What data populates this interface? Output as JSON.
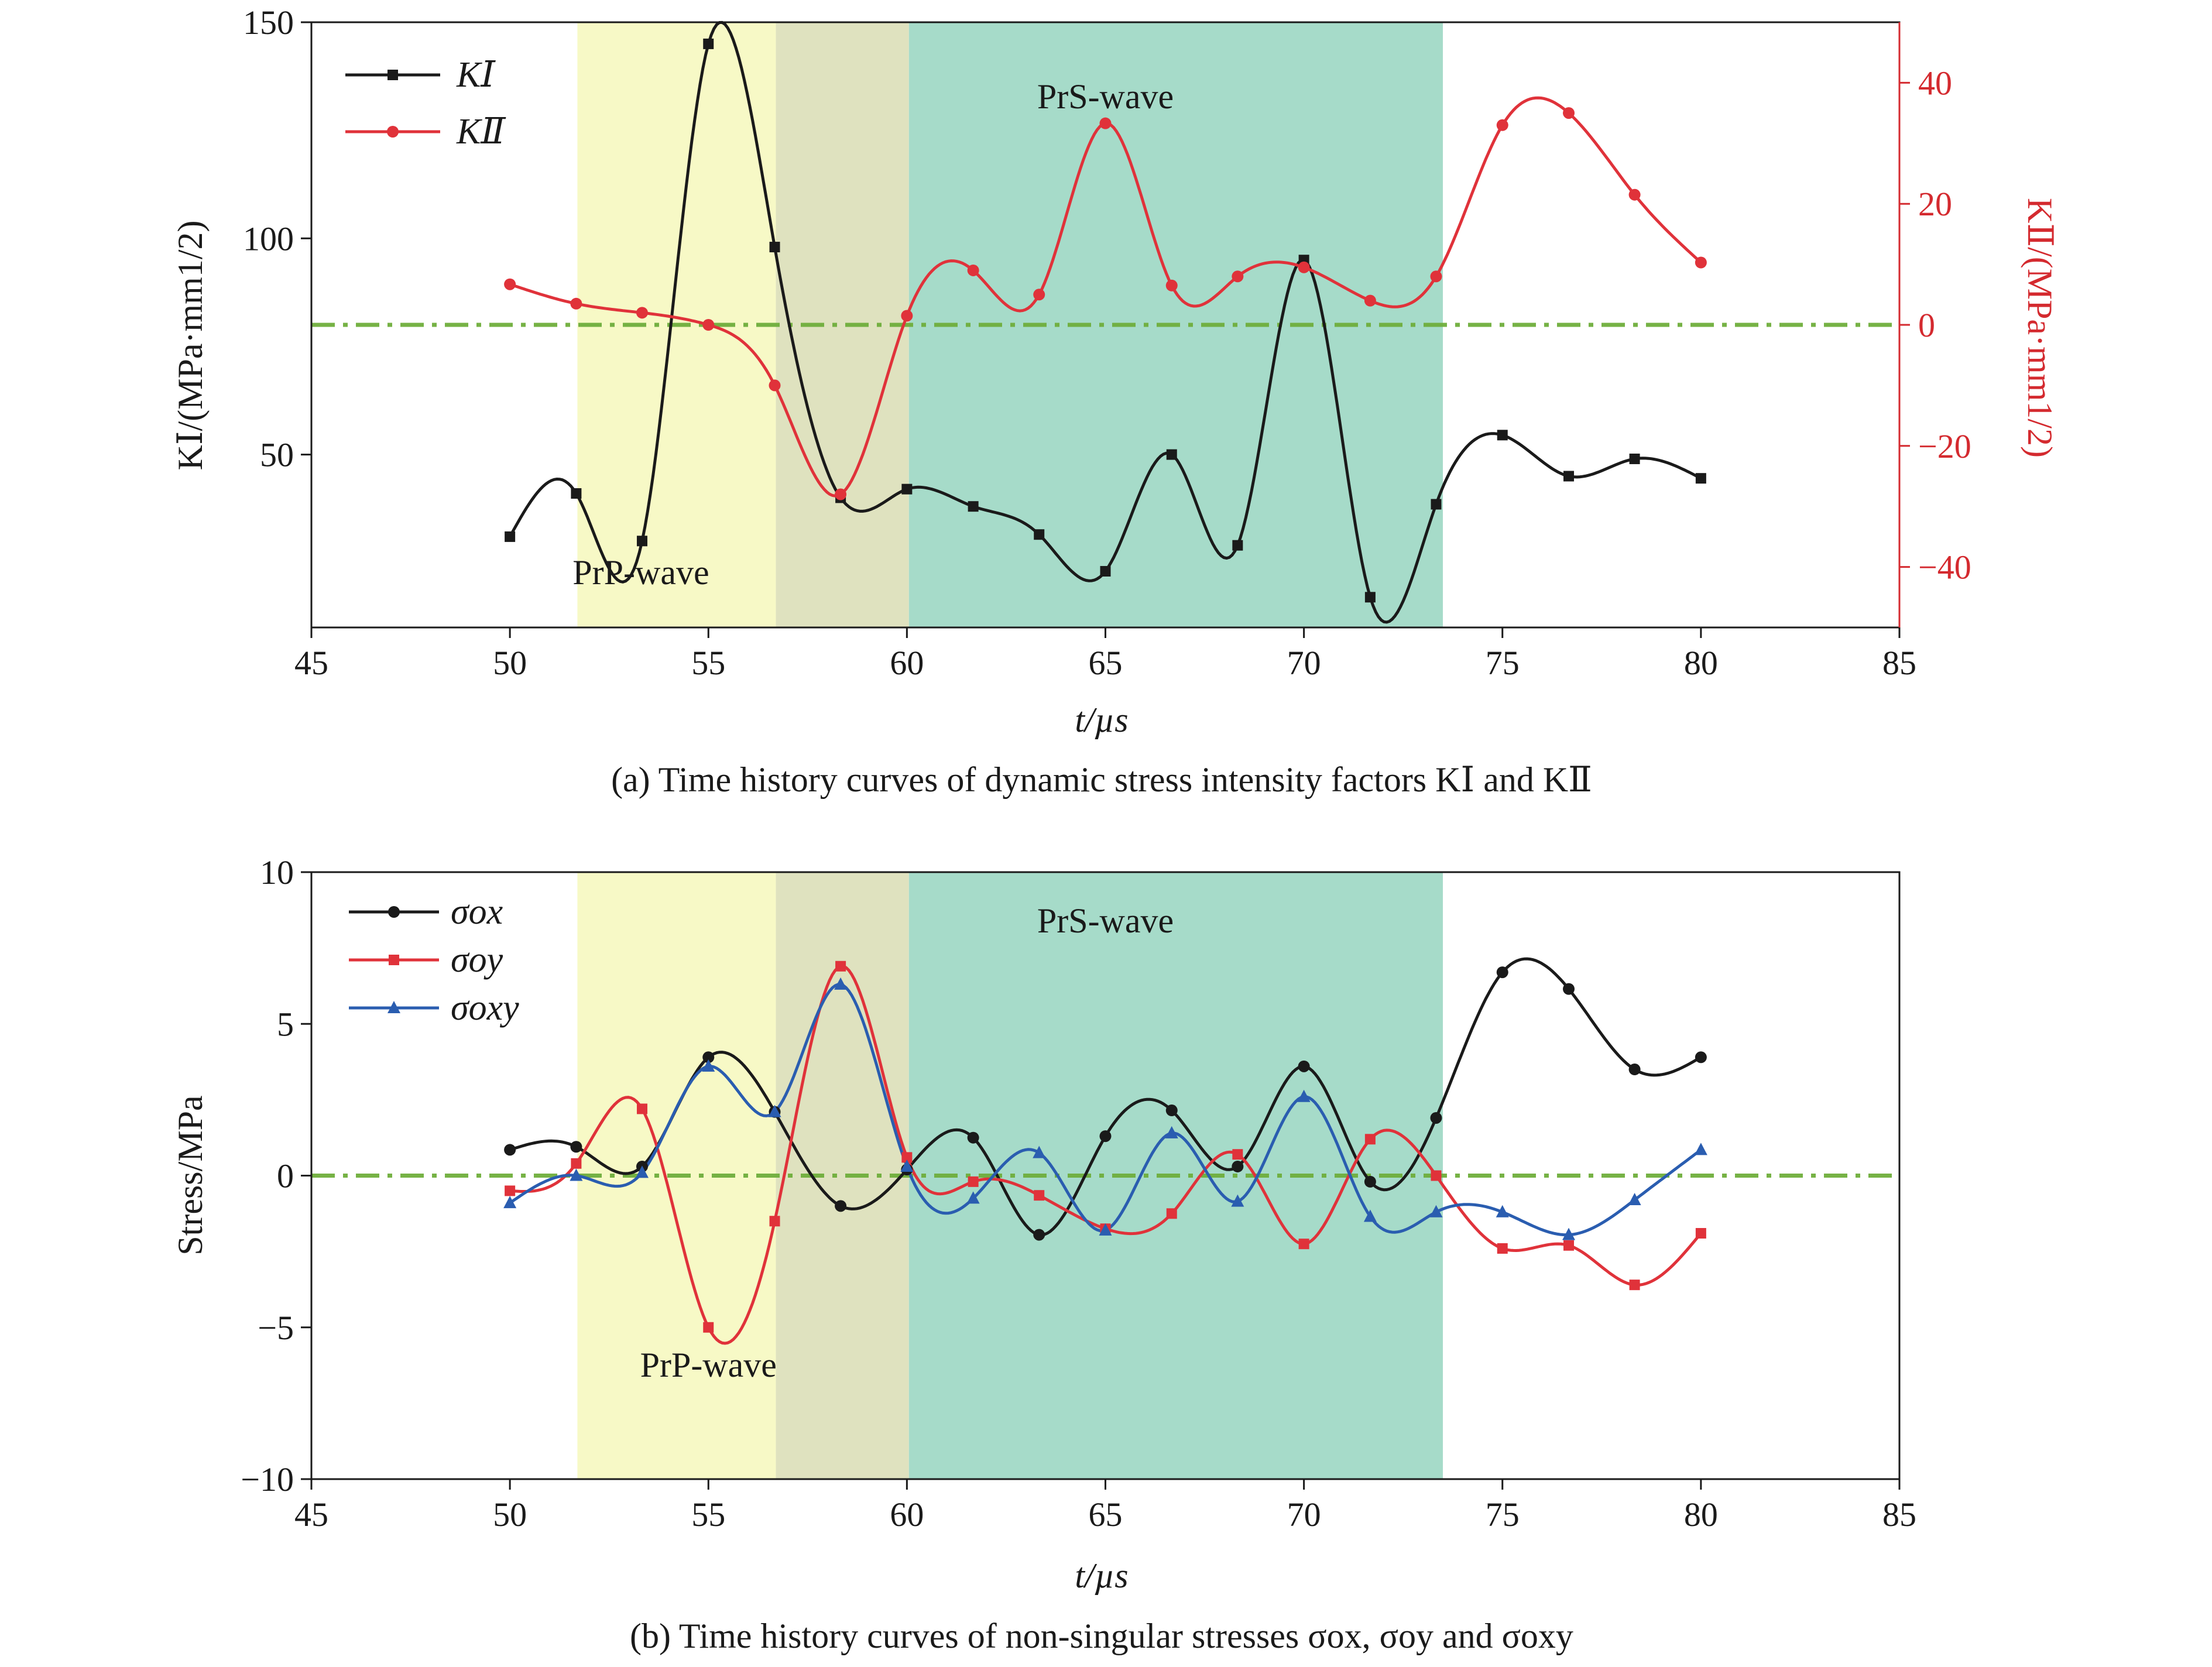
{
  "colors": {
    "black": "#1a1a1a",
    "red": "#e0323a",
    "blue": "#2a5db0",
    "ref_line": "#6fae3c",
    "prp_band": "#f7f9c6",
    "overlap_band": "#dfe2bf",
    "prs_band": "#a6dbc9",
    "right_axis": "#d42a2f"
  },
  "chart_data": [
    {
      "type": "line",
      "id": "a",
      "caption": "(a) Time history curves of dynamic stress intensity factors KⅠ and KⅡ",
      "xlabel": "t/µs",
      "ylabel_left": "KⅠ/(MPa·mm1/2)",
      "ylabel_right": "KⅡ/(MPa·mm1/2)",
      "xlim": [
        45,
        85
      ],
      "ylim_left": [
        10,
        150
      ],
      "ylim_right": [
        -50,
        50
      ],
      "xticks": [
        "45",
        "50",
        "55",
        "60",
        "65",
        "70",
        "75",
        "80",
        "85"
      ],
      "yticks_left": [
        "50",
        "100",
        "150"
      ],
      "yticks_right": [
        "−40",
        "−20",
        "0",
        "20",
        "40"
      ],
      "regions": [
        {
          "label": "PrP-wave",
          "x0": 51.7,
          "x1": 60.05
        },
        {
          "label": "PrS-wave",
          "x0": 56.7,
          "x1": 73.5
        }
      ],
      "reference_line": {
        "axis": "right",
        "y": 0
      },
      "legend_position": "top-left",
      "series": [
        {
          "name": "KⅠ",
          "axis": "left",
          "marker": "square",
          "x": [
            50,
            51.67,
            53.33,
            55,
            56.67,
            58.33,
            60,
            61.67,
            63.33,
            65,
            66.67,
            68.33,
            70,
            71.67,
            73.33,
            75,
            76.67,
            78.33,
            80
          ],
          "values": [
            31,
            41,
            30,
            145,
            98,
            40,
            42,
            38,
            31.5,
            23,
            50,
            29,
            95,
            17,
            38.5,
            54.5,
            45,
            49,
            44.5
          ]
        },
        {
          "name": "KⅡ",
          "axis": "right",
          "marker": "circle",
          "x": [
            50,
            51.67,
            53.33,
            55,
            56.67,
            58.33,
            60,
            61.67,
            63.33,
            65,
            66.67,
            68.33,
            70,
            71.67,
            73.33,
            75,
            76.67,
            78.33,
            80
          ],
          "values": [
            6.7,
            3.5,
            2,
            0,
            -10,
            -28,
            1.5,
            9,
            5,
            33.3,
            6.5,
            8,
            9.5,
            4,
            8,
            33,
            35,
            21.5,
            10.3
          ]
        }
      ]
    },
    {
      "type": "line",
      "id": "b",
      "caption": "(b) Time history curves of non-singular stresses σox, σoy and σoxy",
      "xlabel": "t/µs",
      "ylabel": "Stress/MPa",
      "xlim": [
        45,
        85
      ],
      "ylim": [
        -10,
        10
      ],
      "xticks": [
        "45",
        "50",
        "55",
        "60",
        "65",
        "70",
        "75",
        "80",
        "85"
      ],
      "yticks": [
        "−10",
        "−5",
        "0",
        "5",
        "10"
      ],
      "regions": [
        {
          "label": "PrP-wave",
          "x0": 51.7,
          "x1": 60.05
        },
        {
          "label": "PrS-wave",
          "x0": 56.7,
          "x1": 73.5
        }
      ],
      "reference_line": {
        "y": 0
      },
      "legend_position": "top-left",
      "series": [
        {
          "name": "σox",
          "marker": "circle",
          "x": [
            50,
            51.67,
            53.33,
            55,
            56.67,
            58.33,
            60,
            61.67,
            63.33,
            65,
            66.67,
            68.33,
            70,
            71.67,
            73.33,
            75,
            76.67,
            78.33,
            80
          ],
          "values": [
            0.85,
            0.95,
            0.3,
            3.9,
            2.1,
            -1.0,
            0.2,
            1.25,
            -1.95,
            1.3,
            2.15,
            0.3,
            3.6,
            -0.2,
            1.9,
            6.7,
            6.15,
            3.5,
            3.9
          ]
        },
        {
          "name": "σoy",
          "marker": "square",
          "x": [
            50,
            51.67,
            53.33,
            55,
            56.67,
            58.33,
            60,
            61.67,
            63.33,
            65,
            66.67,
            68.33,
            70,
            71.67,
            73.33,
            75,
            76.67,
            78.33,
            80
          ],
          "values": [
            -0.5,
            0.4,
            2.2,
            -5.0,
            -1.5,
            6.9,
            0.6,
            -0.2,
            -0.65,
            -1.75,
            -1.25,
            0.7,
            -2.25,
            1.2,
            0.0,
            -2.4,
            -2.3,
            -3.6,
            -1.9
          ]
        },
        {
          "name": "σoxy",
          "marker": "triangle",
          "x": [
            50,
            51.67,
            53.33,
            55,
            56.67,
            58.33,
            60,
            61.67,
            63.33,
            65,
            66.67,
            68.33,
            70,
            71.67,
            73.33,
            75,
            76.67,
            78.33,
            80
          ],
          "values": [
            -0.9,
            0.0,
            0.1,
            3.6,
            2.1,
            6.3,
            0.3,
            -0.75,
            0.75,
            -1.8,
            1.4,
            -0.85,
            2.6,
            -1.35,
            -1.2,
            -1.2,
            -1.95,
            -0.8,
            0.85
          ]
        }
      ]
    }
  ]
}
